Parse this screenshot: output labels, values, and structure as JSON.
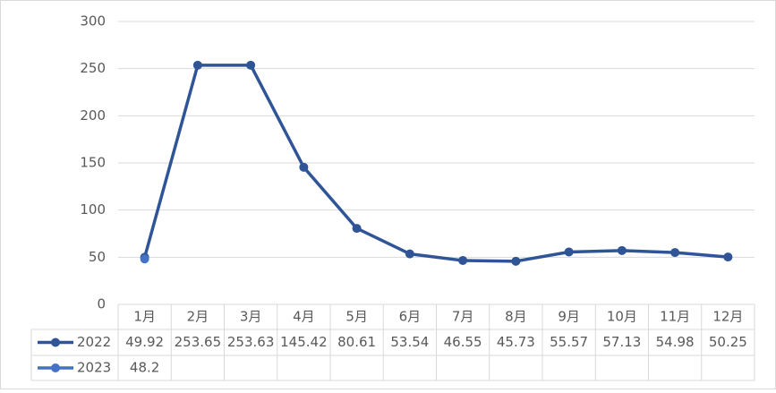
{
  "chart_data": {
    "type": "line",
    "categories": [
      "1月",
      "2月",
      "3月",
      "4月",
      "5月",
      "6月",
      "7月",
      "8月",
      "9月",
      "10月",
      "11月",
      "12月"
    ],
    "series": [
      {
        "name": "2022",
        "color": "#2f5597",
        "values": [
          49.92,
          253.65,
          253.63,
          145.42,
          80.61,
          53.54,
          46.55,
          45.73,
          55.57,
          57.13,
          54.98,
          50.25
        ]
      },
      {
        "name": "2023",
        "color": "#4472c4",
        "values": [
          48.2,
          null,
          null,
          null,
          null,
          null,
          null,
          null,
          null,
          null,
          null,
          null
        ]
      }
    ],
    "ylim": [
      0,
      300
    ],
    "yticks": [
      0,
      50,
      100,
      150,
      200,
      250,
      300
    ],
    "grid": true
  }
}
